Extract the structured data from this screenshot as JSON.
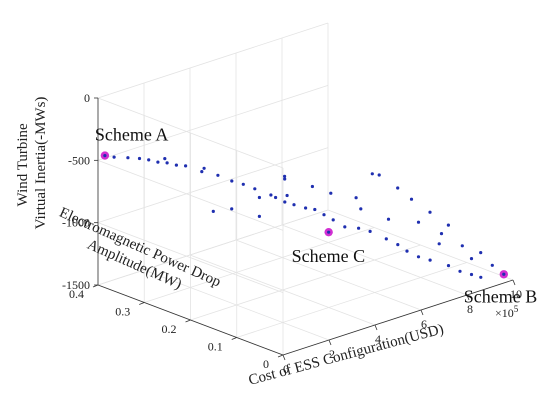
{
  "chart_data": {
    "type": "scatter",
    "subtype": "3d-scatter",
    "xlabel": "Cost of ESS Configuration(USD)",
    "x_exponent_label": "×10",
    "x_exponent": "5",
    "ylabel": "Electromagnetic Power Drop Amplitude(MW)",
    "ylabel_lines": [
      "Electromagnetic Power Drop",
      "Amplitude(MW)"
    ],
    "zlabel": "Wind Turbine Virtual Inertia(-MWs)",
    "zlabel_lines": [
      "Wind Turbine",
      "Virtual Inertia(-MWs)"
    ],
    "xlim": [
      0,
      10
    ],
    "ylim": [
      0,
      0.4
    ],
    "zlim": [
      -1500,
      0
    ],
    "x_ticks": [
      "0",
      "2",
      "4",
      "6",
      "8",
      "10"
    ],
    "y_ticks": [
      "0",
      "0.1",
      "0.2",
      "0.3",
      "0.4"
    ],
    "z_ticks": [
      "0",
      "-500",
      "-1000",
      "-1500"
    ],
    "grid": true,
    "point_color": "#1f2fb0",
    "highlight_color": "#d22fd2",
    "points": [
      [
        0.5,
        0.39,
        -490
      ],
      [
        0.9,
        0.38,
        -505
      ],
      [
        1.2,
        0.37,
        -515
      ],
      [
        1.4,
        0.36,
        -525
      ],
      [
        1.6,
        0.35,
        -540
      ],
      [
        1.8,
        0.34,
        -545
      ],
      [
        2.0,
        0.33,
        -560
      ],
      [
        2.2,
        0.32,
        -565
      ],
      [
        1.9,
        0.35,
        -530
      ],
      [
        2.5,
        0.3,
        -600
      ],
      [
        2.8,
        0.28,
        -620
      ],
      [
        3.0,
        0.26,
        -650
      ],
      [
        2.6,
        0.3,
        -580
      ],
      [
        3.3,
        0.25,
        -680
      ],
      [
        3.6,
        0.24,
        -720
      ],
      [
        3.4,
        0.22,
        -750
      ],
      [
        3.9,
        0.22,
        -760
      ],
      [
        4.1,
        0.2,
        -800
      ],
      [
        3.7,
        0.2,
        -740
      ],
      [
        4.3,
        0.19,
        -820
      ],
      [
        4.6,
        0.18,
        -850
      ],
      [
        4.8,
        0.17,
        -860
      ],
      [
        4.4,
        0.21,
        -780
      ],
      [
        5.0,
        0.16,
        -900
      ],
      [
        5.2,
        0.15,
        -940
      ],
      [
        3.2,
        0.27,
        -900
      ],
      [
        3.0,
        0.3,
        -950
      ],
      [
        4.0,
        0.25,
        -980
      ],
      [
        5.5,
        0.14,
        -1000
      ],
      [
        5.9,
        0.13,
        -1020
      ],
      [
        6.2,
        0.12,
        -1050
      ],
      [
        6.5,
        0.1,
        -1100
      ],
      [
        6.8,
        0.09,
        -1150
      ],
      [
        7.0,
        0.08,
        -1200
      ],
      [
        7.3,
        0.07,
        -1250
      ],
      [
        7.6,
        0.06,
        -1280
      ],
      [
        8.0,
        0.04,
        -1320
      ],
      [
        8.3,
        0.03,
        -1370
      ],
      [
        8.6,
        0.02,
        -1400
      ],
      [
        8.8,
        0.01,
        -1420
      ],
      [
        7.2,
        0.15,
        -700
      ],
      [
        7.6,
        0.13,
        -800
      ],
      [
        8.0,
        0.12,
        -900
      ],
      [
        8.4,
        0.1,
        -1000
      ],
      [
        8.8,
        0.08,
        -1100
      ],
      [
        9.0,
        0.06,
        -1250
      ],
      [
        9.2,
        0.05,
        -1350
      ],
      [
        8.5,
        0.08,
        -1150
      ],
      [
        7.9,
        0.1,
        -1050
      ],
      [
        6.8,
        0.18,
        -900
      ],
      [
        6.1,
        0.2,
        -850
      ],
      [
        5.7,
        0.22,
        -800
      ],
      [
        5.3,
        0.26,
        -750
      ],
      [
        4.9,
        0.24,
        -720
      ],
      [
        7.5,
        0.18,
        -750
      ],
      [
        9.4,
        0.04,
        -1300
      ],
      [
        9.5,
        0.02,
        -1380
      ],
      [
        6.6,
        0.16,
        -950
      ],
      [
        8.2,
        0.07,
        -1200
      ],
      [
        7.0,
        0.12,
        -1000
      ]
    ],
    "highlighted": [
      {
        "name": "Scheme A",
        "x": 0.3,
        "y": 0.4,
        "z": -480
      },
      {
        "name": "Scheme C",
        "x": 4.8,
        "y": 0.14,
        "z": -1000
      },
      {
        "name": "Scheme B",
        "x": 9.6,
        "y": 0.0,
        "z": -1430
      }
    ]
  }
}
